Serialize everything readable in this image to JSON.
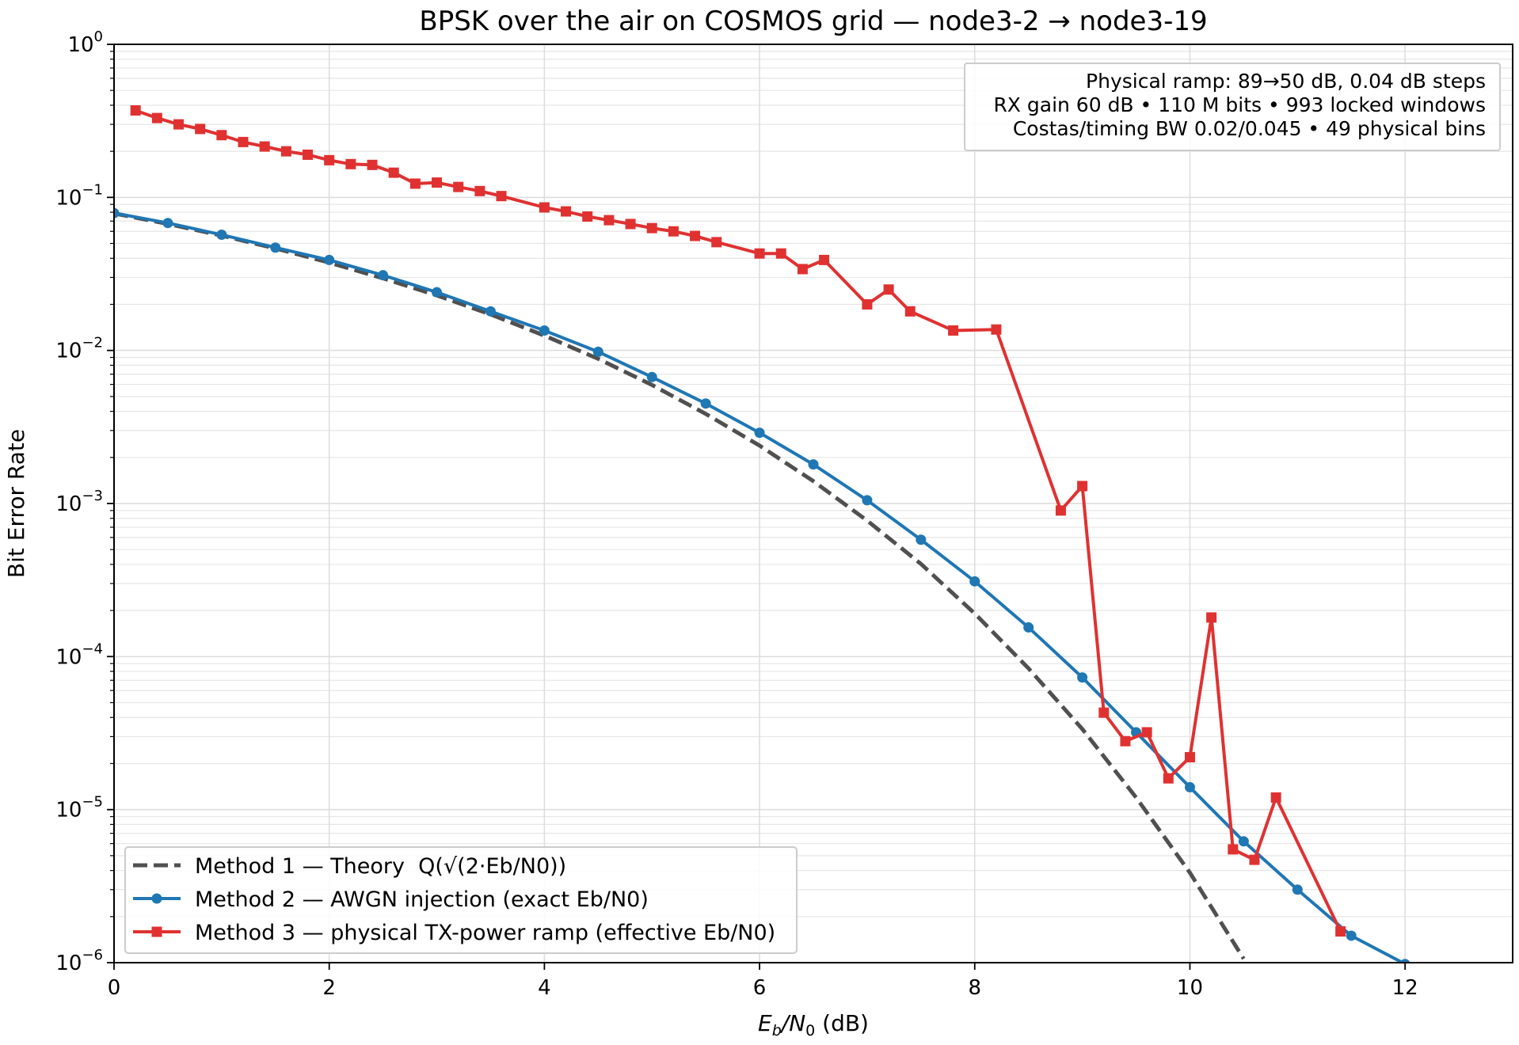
{
  "chart_data": {
    "type": "line",
    "title": "BPSK over the air on COSMOS grid — node3-2 → node3-19",
    "xlabel": {
      "main": "E",
      "sub1": "b",
      "mid": "/N",
      "sub2": "0",
      "tail": " (dB)"
    },
    "ylabel": "Bit Error Rate",
    "xlim": [
      0,
      13
    ],
    "ylim": [
      1e-06,
      1
    ],
    "yscale": "log",
    "grid": true,
    "legend_position": "lower-left",
    "x_ticks": [
      "0",
      "2",
      "4",
      "6",
      "8",
      "10",
      "12"
    ],
    "y_ticks": [
      {
        "base": "10",
        "exp": "0"
      },
      {
        "base": "10",
        "exp": "−1"
      },
      {
        "base": "10",
        "exp": "−2"
      },
      {
        "base": "10",
        "exp": "−3"
      },
      {
        "base": "10",
        "exp": "−4"
      },
      {
        "base": "10",
        "exp": "−5"
      },
      {
        "base": "10",
        "exp": "−6"
      }
    ],
    "annotation": [
      "Physical ramp: 89→50 dB, 0.04 dB steps",
      "RX gain 60 dB • 110 M bits • 993 locked windows",
      "Costas/timing BW 0.02/0.045 • 49 physical bins"
    ],
    "series": [
      {
        "name": "Method 1 — Theory  Q(√(2·Eb/N0))",
        "color": "#505050",
        "style": "dashed",
        "x": [
          0,
          0.5,
          1,
          1.5,
          2,
          2.5,
          3,
          3.5,
          4,
          4.5,
          5,
          5.5,
          6,
          6.5,
          7,
          7.5,
          8,
          8.5,
          9,
          9.5,
          10,
          10.5
        ],
        "y": [
          0.0786,
          0.0671,
          0.0563,
          0.0464,
          0.0375,
          0.0296,
          0.0229,
          0.0172,
          0.0125,
          0.00882,
          0.00595,
          0.00385,
          0.00239,
          0.0014,
          0.000773,
          0.000403,
          0.000191,
          8.37e-05,
          3.36e-05,
          1.2e-05,
          3.87e-06,
          1.06e-06
        ]
      },
      {
        "name": "Method 2 — AWGN injection (exact Eb/N0)",
        "color": "#1f77b4",
        "style": "solid",
        "marker": "circle",
        "x": [
          0,
          0.5,
          1,
          1.5,
          2,
          2.5,
          3,
          3.5,
          4,
          4.5,
          5,
          5.5,
          6,
          6.5,
          7,
          7.5,
          8,
          8.5,
          9,
          9.5,
          10,
          10.5,
          11,
          11.5,
          12
        ],
        "y": [
          0.079,
          0.068,
          0.057,
          0.047,
          0.039,
          0.031,
          0.024,
          0.018,
          0.0135,
          0.0098,
          0.0067,
          0.0045,
          0.0029,
          0.0018,
          0.00105,
          0.00058,
          0.00031,
          0.000155,
          7.3e-05,
          3.2e-05,
          1.4e-05,
          6.2e-06,
          3e-06,
          1.5e-06,
          9.8e-07
        ]
      },
      {
        "name": "Method 3 — physical TX-power ramp (effective Eb/N0)",
        "color": "#e03131",
        "style": "solid",
        "marker": "square",
        "x": [
          0.2,
          0.4,
          0.6,
          0.8,
          1.0,
          1.2,
          1.4,
          1.6,
          1.8,
          2.0,
          2.2,
          2.4,
          2.6,
          2.8,
          3.0,
          3.2,
          3.4,
          3.6,
          4.0,
          4.2,
          4.4,
          4.6,
          4.8,
          5.0,
          5.2,
          5.4,
          5.6,
          6.0,
          6.2,
          6.4,
          6.6,
          7.0,
          7.2,
          7.4,
          7.8,
          8.2,
          8.8,
          9.0,
          9.2,
          9.4,
          9.6,
          9.8,
          10.0,
          10.2,
          10.4,
          10.6,
          10.8,
          11.4
        ],
        "y": [
          0.37,
          0.33,
          0.3,
          0.28,
          0.255,
          0.23,
          0.215,
          0.2,
          0.19,
          0.175,
          0.165,
          0.163,
          0.145,
          0.123,
          0.125,
          0.117,
          0.11,
          0.102,
          0.086,
          0.081,
          0.075,
          0.071,
          0.067,
          0.063,
          0.06,
          0.056,
          0.051,
          0.043,
          0.043,
          0.034,
          0.039,
          0.02,
          0.025,
          0.018,
          0.0135,
          0.0137,
          0.0009,
          0.0013,
          4.3e-05,
          2.8e-05,
          3.2e-05,
          1.6e-05,
          2.2e-05,
          0.00018,
          5.5e-06,
          4.7e-06,
          1.2e-05,
          1.6e-06
        ]
      }
    ]
  }
}
